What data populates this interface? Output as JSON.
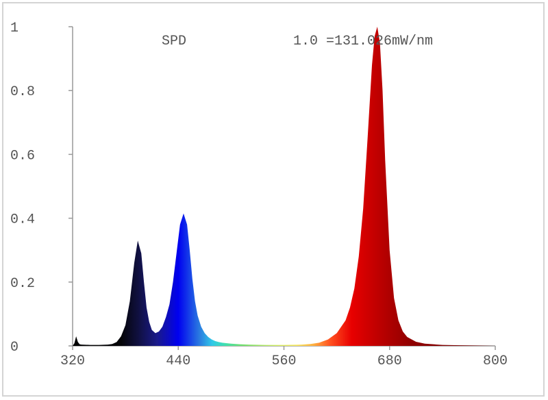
{
  "chart_data": {
    "type": "area",
    "title": "SPD",
    "annotation": "1.0 =131.026mW/nm",
    "xlabel": "",
    "ylabel": "",
    "xlim": [
      320,
      800
    ],
    "ylim": [
      0,
      1
    ],
    "x_ticks": [
      320,
      440,
      560,
      680,
      800
    ],
    "x_tick_labels": [
      "320",
      "440",
      "560",
      "680",
      "800"
    ],
    "y_ticks": [
      0,
      0.2,
      0.4,
      0.6,
      0.8,
      1
    ],
    "y_tick_labels": [
      "0",
      "0.2",
      "0.4",
      "0.6",
      "0.8",
      "1"
    ],
    "grid": false,
    "legend": "none",
    "series": [
      {
        "x": [
          320,
          322,
          324,
          326,
          328,
          330,
          340,
          350,
          360,
          365,
          370,
          375,
          380,
          385,
          390,
          394,
          398,
          401,
          404,
          407,
          410,
          414,
          418,
          422,
          426,
          430,
          434,
          438,
          442,
          446,
          450,
          453,
          456,
          459,
          462,
          466,
          470,
          474,
          478,
          482,
          486,
          490,
          500,
          510,
          520,
          540,
          560,
          580,
          590,
          600,
          610,
          620,
          630,
          635,
          640,
          645,
          650,
          655,
          660,
          663,
          666,
          669,
          672,
          675,
          680,
          685,
          690,
          695,
          700,
          710,
          720,
          740,
          760,
          780,
          800
        ],
        "values": [
          0,
          0.008,
          0.03,
          0.012,
          0.005,
          0.004,
          0.003,
          0.003,
          0.004,
          0.006,
          0.012,
          0.03,
          0.065,
          0.14,
          0.26,
          0.33,
          0.29,
          0.2,
          0.12,
          0.075,
          0.05,
          0.04,
          0.045,
          0.06,
          0.09,
          0.13,
          0.2,
          0.29,
          0.38,
          0.415,
          0.38,
          0.3,
          0.21,
          0.14,
          0.095,
          0.06,
          0.04,
          0.028,
          0.02,
          0.015,
          0.012,
          0.01,
          0.007,
          0.005,
          0.004,
          0.003,
          0.003,
          0.004,
          0.006,
          0.01,
          0.02,
          0.04,
          0.08,
          0.12,
          0.18,
          0.28,
          0.43,
          0.65,
          0.88,
          0.97,
          1.0,
          0.95,
          0.8,
          0.58,
          0.3,
          0.15,
          0.08,
          0.045,
          0.028,
          0.013,
          0.007,
          0.003,
          0.002,
          0.001,
          0
        ]
      }
    ]
  }
}
